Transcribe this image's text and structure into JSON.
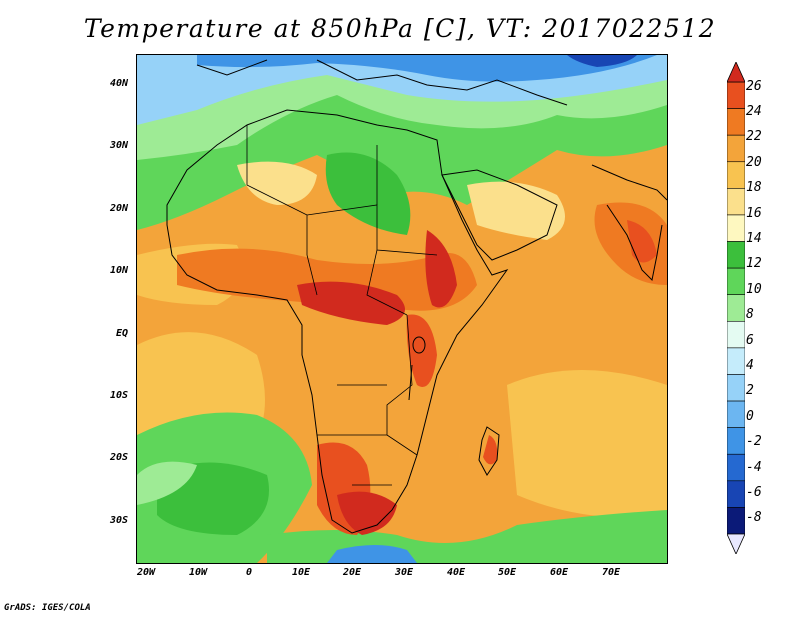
{
  "title": "Temperature at 850hPa [C], VT: 2017022512",
  "credit": "GrADS: IGES/COLA",
  "map": {
    "lat_labels": [
      "40N",
      "30N",
      "20N",
      "10N",
      "EQ",
      "10S",
      "20S",
      "30S"
    ],
    "lon_labels": [
      "20W",
      "10W",
      "0",
      "10E",
      "20E",
      "30E",
      "40E",
      "50E",
      "60E",
      "70E"
    ]
  },
  "colorbar": {
    "labels": [
      "26",
      "24",
      "22",
      "20",
      "18",
      "16",
      "14",
      "12",
      "10",
      "8",
      "6",
      "4",
      "2",
      "0",
      "-2",
      "-4",
      "-6",
      "-8"
    ],
    "colors": [
      "#d12a1e",
      "#e8501f",
      "#ef7a22",
      "#f3a43a",
      "#f8c350",
      "#fbe08c",
      "#fef8c0",
      "#3cbf3c",
      "#5fd65a",
      "#9eeb95",
      "#e4fbf2",
      "#c5ecfb",
      "#96d2f8",
      "#6cb6f1",
      "#3f94e6",
      "#2569d1",
      "#1845b4",
      "#0b1a78"
    ]
  },
  "map_colors": {
    "ocean_warm": "#f3a43a",
    "hot": "#d12a1e",
    "warm": "#ef7a22",
    "mild": "#f8c350",
    "cool_green": "#5fd65a",
    "green": "#3cbf3c",
    "pale": "#9eeb95",
    "cold": "#3f94e6"
  }
}
